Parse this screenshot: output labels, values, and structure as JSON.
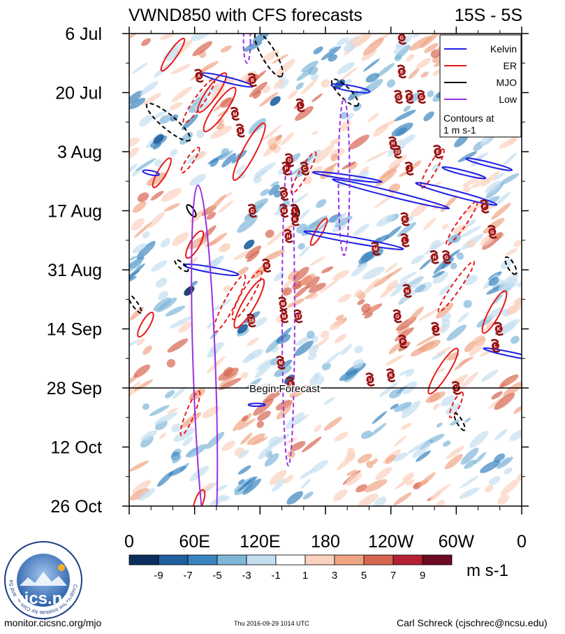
{
  "chart_data": {
    "type": "heatmap",
    "title": "VWND850 with CFS forecasts",
    "region": "15S - 5S",
    "x_ticks": [
      "0",
      "60E",
      "120E",
      "180",
      "120W",
      "60W",
      "0"
    ],
    "x_range_deg": [
      0,
      360
    ],
    "y_ticks": [
      "6 Jul",
      "20 Jul",
      "3 Aug",
      "17 Aug",
      "31 Aug",
      "14 Sep",
      "28 Sep",
      "12 Oct",
      "26 Oct"
    ],
    "y_range_days_from_6jul": [
      0,
      112
    ],
    "forecast_start_day": 84,
    "forecast_label": "Begin Forecast",
    "legend": {
      "entries": [
        {
          "name": "Kelvin",
          "color": "#1f1fe6"
        },
        {
          "name": "ER",
          "color": "#e61a1a"
        },
        {
          "name": "MJO",
          "color": "#000000"
        },
        {
          "name": "Low",
          "color": "#9a30e0"
        }
      ],
      "note_line1": "Contours at",
      "note_line2": "1 m s-1",
      "position": "top-right"
    },
    "colorbar": {
      "labels": [
        "-9",
        "-7",
        "-5",
        "-3",
        "-1",
        "1",
        "3",
        "5",
        "7",
        "9"
      ],
      "colors": [
        "#0b2e5c",
        "#1f5f9f",
        "#3a84bf",
        "#7fb6d8",
        "#c4def0",
        "#ffffff",
        "#fbd2bf",
        "#f0a584",
        "#d66550",
        "#b52132",
        "#6e0a22"
      ],
      "units": "m s-1"
    },
    "storms": [
      {
        "label": "A",
        "lon": 64,
        "day": 10
      },
      {
        "label": "B",
        "lon": 113,
        "day": 11
      },
      {
        "label": "G",
        "lon": 250,
        "day": 1
      },
      {
        "label": "E",
        "lon": 250,
        "day": 9
      },
      {
        "label": "L",
        "lon": 157,
        "day": 17
      },
      {
        "label": "M",
        "lon": 97,
        "day": 19
      },
      {
        "label": "G",
        "lon": 247,
        "day": 15
      },
      {
        "label": "F",
        "lon": 257,
        "day": 15
      },
      {
        "label": "G",
        "lon": 268,
        "day": 15
      },
      {
        "label": "N",
        "lon": 102,
        "day": 23
      },
      {
        "label": "H",
        "lon": 242,
        "day": 26
      },
      {
        "label": "10",
        "lon": 246,
        "day": 28
      },
      {
        "label": "E",
        "lon": 283,
        "day": 28
      },
      {
        "label": "O",
        "lon": 147,
        "day": 30
      },
      {
        "label": "P",
        "lon": 144,
        "day": 32
      },
      {
        "label": "J",
        "lon": 257,
        "day": 32
      },
      {
        "label": "C",
        "lon": 161,
        "day": 32
      },
      {
        "label": "Q",
        "lon": 142,
        "day": 38
      },
      {
        "label": "M",
        "lon": 142,
        "day": 42
      },
      {
        "label": "L",
        "lon": 152,
        "day": 42
      },
      {
        "label": "K",
        "lon": 152,
        "day": 44
      },
      {
        "label": "D",
        "lon": 113,
        "day": 42
      },
      {
        "label": "F",
        "lon": 326,
        "day": 41
      },
      {
        "label": "K",
        "lon": 253,
        "day": 44
      },
      {
        "label": "G",
        "lon": 333,
        "day": 47
      },
      {
        "label": "H",
        "lon": 146,
        "day": 48
      },
      {
        "label": "L",
        "lon": 253,
        "day": 49
      },
      {
        "label": "M",
        "lon": 226,
        "day": 51
      },
      {
        "label": "H",
        "lon": 280,
        "day": 53
      },
      {
        "label": "G",
        "lon": 291,
        "day": 53
      },
      {
        "label": "N",
        "lon": 126,
        "day": 55
      },
      {
        "label": "N",
        "lon": 255,
        "day": 61
      },
      {
        "label": "M",
        "lon": 141,
        "day": 64
      },
      {
        "label": "O",
        "lon": 246,
        "day": 67
      },
      {
        "label": "19",
        "lon": 112,
        "day": 68
      },
      {
        "label": "M",
        "lon": 142,
        "day": 67
      },
      {
        "label": "17",
        "lon": 155,
        "day": 67
      },
      {
        "label": "J",
        "lon": 281,
        "day": 70
      },
      {
        "label": "K",
        "lon": 339,
        "day": 70
      },
      {
        "label": "P",
        "lon": 251,
        "day": 73
      },
      {
        "label": "L",
        "lon": 336,
        "day": 74
      },
      {
        "label": "M",
        "lon": 139,
        "day": 78
      },
      {
        "label": "U",
        "lon": 221,
        "day": 82
      },
      {
        "label": "R",
        "lon": 240,
        "day": 81
      },
      {
        "label": "S",
        "lon": 148,
        "day": 83
      },
      {
        "label": "V",
        "lon": 300,
        "day": 84
      }
    ]
  },
  "footer": {
    "left": "monitor.cicsnc.org/mjo",
    "middle": "Thu 2016-09-29 1014 UTC",
    "right": "Carl Schreck (cjschrec@ncsu.edu)"
  },
  "logo": {
    "text": "cics.nc",
    "ring_text": "Cooperative Institute for Climate and Satellites"
  }
}
